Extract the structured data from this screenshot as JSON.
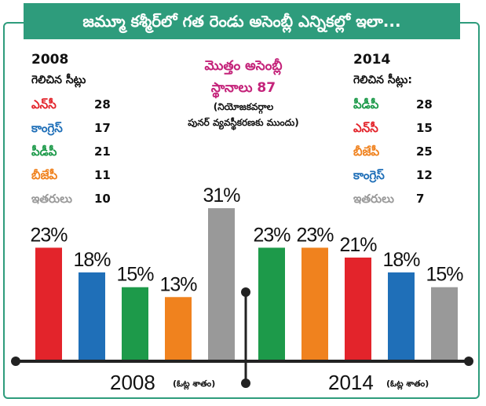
{
  "title": "జమ్మూ కశ్మీర్‌లో గత రెండు అసెంబ్లీ ఎన్నికల్లో ఇలా...",
  "note": {
    "line1": "మొత్తం అసెంబ్లీ",
    "line2": "స్థానాలు 87",
    "line3": "(నియోజకవర్గాల",
    "line4": "పునర్ వ్యవస్థీకరణకు ముందు)"
  },
  "left_panel": {
    "year": "2008",
    "subtitle": "గెలిచిన సీట్లు",
    "rows": [
      {
        "name": "ఎన్‌సీ",
        "seats": "28",
        "color": "#e3242b"
      },
      {
        "name": "కాంగ్రెస్",
        "seats": "17",
        "color": "#1f6fb8"
      },
      {
        "name": "పీడీపీ",
        "seats": "21",
        "color": "#1d9a4a"
      },
      {
        "name": "బీజేపీ",
        "seats": "11",
        "color": "#f0821e"
      },
      {
        "name": "ఇతరులు",
        "seats": "10",
        "color": "#999999"
      }
    ]
  },
  "right_panel": {
    "year": "2014",
    "subtitle": "గెలిచిన సీట్లు:",
    "rows": [
      {
        "name": "పీడీపీ",
        "seats": "28",
        "color": "#1d9a4a"
      },
      {
        "name": "ఎన్‌సీ",
        "seats": "15",
        "color": "#e3242b"
      },
      {
        "name": "బీజేపీ",
        "seats": "25",
        "color": "#f0821e"
      },
      {
        "name": "కాంగ్రెస్",
        "seats": "12",
        "color": "#1f6fb8"
      },
      {
        "name": "ఇతరులు",
        "seats": "7",
        "color": "#999999"
      }
    ]
  },
  "chart_data": {
    "type": "bar",
    "ylim": [
      0,
      35
    ],
    "groups": [
      {
        "label": "2008",
        "sublabel": "(ఓట్ల శాతం)",
        "bars": [
          {
            "party": "ఎన్‌సీ",
            "value": 23,
            "label": "23%",
            "color": "#e3242b"
          },
          {
            "party": "కాంగ్రెస్",
            "value": 18,
            "label": "18%",
            "color": "#1f6fb8"
          },
          {
            "party": "పీడీపీ",
            "value": 15,
            "label": "15%",
            "color": "#1d9a4a"
          },
          {
            "party": "బీజేపీ",
            "value": 13,
            "label": "13%",
            "color": "#f0821e"
          },
          {
            "party": "ఇతరులు",
            "value": 31,
            "label": "31%",
            "color": "#999999"
          }
        ]
      },
      {
        "label": "2014",
        "sublabel": "(ఓట్ల శాతం)",
        "bars": [
          {
            "party": "పీడీపీ",
            "value": 23,
            "label": "23%",
            "color": "#1d9a4a"
          },
          {
            "party": "బీజేపీ",
            "value": 23,
            "label": "23%",
            "color": "#f0821e"
          },
          {
            "party": "ఎన్‌సీ",
            "value": 21,
            "label": "21%",
            "color": "#e3242b"
          },
          {
            "party": "కాంగ్రెస్",
            "value": 18,
            "label": "18%",
            "color": "#1f6fb8"
          },
          {
            "party": "ఇతరులు",
            "value": 15,
            "label": "15%",
            "color": "#999999"
          }
        ]
      }
    ]
  }
}
